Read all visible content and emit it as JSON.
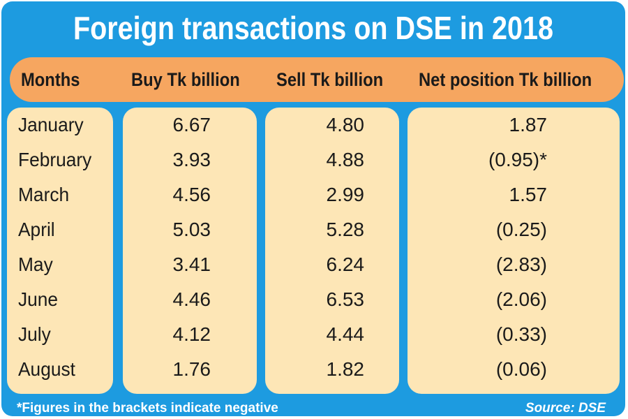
{
  "chart_data": {
    "type": "table",
    "title": "Foreign transactions on DSE in 2018",
    "columns": [
      "Months",
      "Buy Tk billion",
      "Sell Tk billion",
      "Net position Tk billion"
    ],
    "rows": [
      {
        "month": "January",
        "buy": "6.67",
        "sell": "4.80",
        "net": "1.87"
      },
      {
        "month": "February",
        "buy": "3.93",
        "sell": "4.88",
        "net": "(0.95)*"
      },
      {
        "month": "March",
        "buy": "4.56",
        "sell": "2.99",
        "net": "1.57"
      },
      {
        "month": "April",
        "buy": "5.03",
        "sell": "5.28",
        "net": "(0.25)"
      },
      {
        "month": "May",
        "buy": "3.41",
        "sell": "6.24",
        "net": "(2.83)"
      },
      {
        "month": "June",
        "buy": "4.46",
        "sell": "6.53",
        "net": "(2.06)"
      },
      {
        "month": "July",
        "buy": "4.12",
        "sell": "4.44",
        "net": "(0.33)"
      },
      {
        "month": "August",
        "buy": "1.76",
        "sell": "1.82",
        "net": "(0.06)"
      }
    ],
    "footnote": "*Figures in the brackets indicate negative",
    "source": "Source: DSE"
  },
  "colors": {
    "background": "#1d9be0",
    "header": "#f6a660",
    "cells": "#fde6b6",
    "text": "#1a1a1a"
  }
}
